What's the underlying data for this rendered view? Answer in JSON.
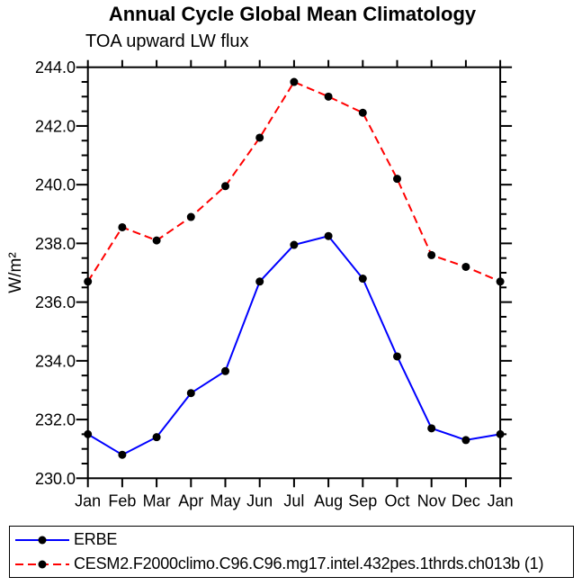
{
  "chart_data": {
    "type": "line",
    "title": "Annual Cycle Global Mean Climatology",
    "subtitle": "TOA upward LW flux",
    "ylabel": "W/m²",
    "categories": [
      "Jan",
      "Feb",
      "Mar",
      "Apr",
      "May",
      "Jun",
      "Jul",
      "Aug",
      "Sep",
      "Oct",
      "Nov",
      "Dec",
      "Jan"
    ],
    "ylim": [
      230.0,
      244.0
    ],
    "ytick_interval": 2.0,
    "yminor_interval": 0.5,
    "ytick_labels": [
      "230.0",
      "232.0",
      "234.0",
      "236.0",
      "238.0",
      "240.0",
      "242.0",
      "244.0"
    ],
    "grid": false,
    "legend_position": "bottom",
    "axis_color": "#000000",
    "marker": "filled-circle",
    "marker_color": "#000000",
    "series": [
      {
        "name": "ERBE",
        "color": "#0000ff",
        "style": "solid",
        "values": [
          231.5,
          230.8,
          231.4,
          232.9,
          233.65,
          236.7,
          237.95,
          238.25,
          236.8,
          234.15,
          231.7,
          231.3,
          231.5
        ]
      },
      {
        "name": "CESM2.F2000climo.C96.C96.mg17.intel.432pes.1thrds.ch013b (1)",
        "color": "#ff0000",
        "style": "dashed",
        "values": [
          236.7,
          238.55,
          238.1,
          238.9,
          239.95,
          241.6,
          243.5,
          243.0,
          242.45,
          240.2,
          237.6,
          237.2,
          236.7
        ]
      }
    ]
  }
}
